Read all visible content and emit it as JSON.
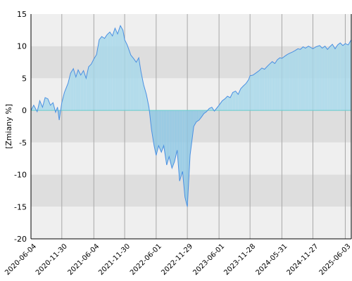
{
  "chart_data": {
    "type": "area",
    "ylabel": "[Zmiany %]",
    "xlabel": "",
    "ylim": [
      -20,
      15
    ],
    "xlim": [
      "2020-06-04",
      "2025-07-08"
    ],
    "y_ticks": [
      15,
      10,
      5,
      0,
      -5,
      -10,
      -15,
      -20
    ],
    "x_ticks": [
      "2020-06-04",
      "2020-11-30",
      "2021-06-04",
      "2021-11-30",
      "2022-06-01",
      "2022-11-29",
      "2023-06-01",
      "2023-11-28",
      "2024-05-31",
      "2024-11-27",
      "2025-06-03"
    ],
    "grid": true,
    "legend": "none",
    "colors": {
      "line": "#4a90e2",
      "fill_positive": "#a8d8ea",
      "fill_negative": "#8fc8e4",
      "band_light": "#efefef",
      "band_dark": "#dedede",
      "zero_line": "#66cccc"
    },
    "series": [
      {
        "x": [
          "2020-06-04",
          "2020-06-20",
          "2020-07-10",
          "2020-07-25",
          "2020-08-10",
          "2020-08-25",
          "2020-09-10",
          "2020-09-25",
          "2020-10-10",
          "2020-10-25",
          "2020-11-05",
          "2020-11-15",
          "2020-11-30",
          "2020-12-15",
          "2021-01-05",
          "2021-01-20",
          "2021-02-05",
          "2021-02-20",
          "2021-03-05",
          "2021-03-20",
          "2021-04-05",
          "2021-04-20",
          "2021-05-05",
          "2021-05-20",
          "2021-06-04",
          "2021-06-20",
          "2021-07-05",
          "2021-07-20",
          "2021-08-05",
          "2021-08-20",
          "2021-09-05",
          "2021-09-20",
          "2021-10-05",
          "2021-10-20",
          "2021-11-05",
          "2021-11-20",
          "2021-11-30",
          "2021-12-15",
          "2022-01-05",
          "2022-01-20",
          "2022-02-05",
          "2022-02-20",
          "2022-03-05",
          "2022-03-20",
          "2022-04-05",
          "2022-04-20",
          "2022-05-05",
          "2022-05-20",
          "2022-06-01",
          "2022-06-15",
          "2022-07-01",
          "2022-07-15",
          "2022-08-01",
          "2022-08-15",
          "2022-09-01",
          "2022-09-15",
          "2022-10-01",
          "2022-10-15",
          "2022-11-01",
          "2022-11-15",
          "2022-11-29",
          "2022-12-15",
          "2023-01-05",
          "2023-01-20",
          "2023-02-05",
          "2023-02-20",
          "2023-03-05",
          "2023-03-20",
          "2023-04-05",
          "2023-04-20",
          "2023-05-05",
          "2023-05-20",
          "2023-06-01",
          "2023-06-20",
          "2023-07-05",
          "2023-07-20",
          "2023-08-05",
          "2023-08-20",
          "2023-09-05",
          "2023-09-20",
          "2023-10-05",
          "2023-10-20",
          "2023-11-05",
          "2023-11-20",
          "2023-11-28",
          "2023-12-15",
          "2024-01-05",
          "2024-01-20",
          "2024-02-05",
          "2024-02-20",
          "2024-03-05",
          "2024-03-20",
          "2024-04-05",
          "2024-04-20",
          "2024-05-05",
          "2024-05-20",
          "2024-05-31",
          "2024-06-15",
          "2024-07-01",
          "2024-07-15",
          "2024-08-01",
          "2024-08-15",
          "2024-09-01",
          "2024-09-15",
          "2024-10-01",
          "2024-10-15",
          "2024-11-01",
          "2024-11-15",
          "2024-11-27",
          "2024-12-15",
          "2025-01-05",
          "2025-01-20",
          "2025-02-05",
          "2025-02-20",
          "2025-03-05",
          "2025-03-20",
          "2025-04-05",
          "2025-04-20",
          "2025-05-05",
          "2025-05-20",
          "2025-06-03",
          "2025-06-20",
          "2025-07-08"
        ],
        "values": [
          0.0,
          0.8,
          -0.2,
          1.5,
          0.5,
          2.0,
          1.8,
          0.8,
          1.2,
          -0.3,
          0.5,
          -1.5,
          1.2,
          2.8,
          4.2,
          5.8,
          6.5,
          5.2,
          6.3,
          5.5,
          6.2,
          5.0,
          6.8,
          7.2,
          8.0,
          8.7,
          11.0,
          11.5,
          11.2,
          11.8,
          12.2,
          11.6,
          12.8,
          11.9,
          13.2,
          12.5,
          11.0,
          10.2,
          8.6,
          8.1,
          7.5,
          8.2,
          6.0,
          4.0,
          2.5,
          0.5,
          -3.0,
          -5.5,
          -7.0,
          -5.5,
          -6.5,
          -5.5,
          -8.5,
          -7.2,
          -9.0,
          -8.0,
          -6.2,
          -11.0,
          -9.5,
          -13.5,
          -15.0,
          -7.0,
          -2.5,
          -1.8,
          -1.5,
          -1.0,
          -0.5,
          -0.2,
          0.3,
          0.5,
          -0.1,
          0.4,
          0.8,
          1.5,
          1.8,
          2.2,
          2.0,
          2.8,
          3.0,
          2.5,
          3.4,
          3.8,
          4.2,
          4.8,
          5.4,
          5.5,
          5.9,
          6.2,
          6.6,
          6.4,
          6.8,
          7.2,
          7.6,
          7.3,
          7.9,
          8.2,
          8.1,
          8.4,
          8.7,
          8.9,
          9.1,
          9.3,
          9.6,
          9.5,
          9.9,
          9.7,
          10.0,
          9.8,
          9.6,
          9.9,
          10.1,
          9.7,
          10.0,
          9.5,
          9.9,
          10.3,
          9.6,
          10.2,
          10.5,
          10.1,
          10.4,
          10.2,
          11.0
        ]
      }
    ]
  }
}
